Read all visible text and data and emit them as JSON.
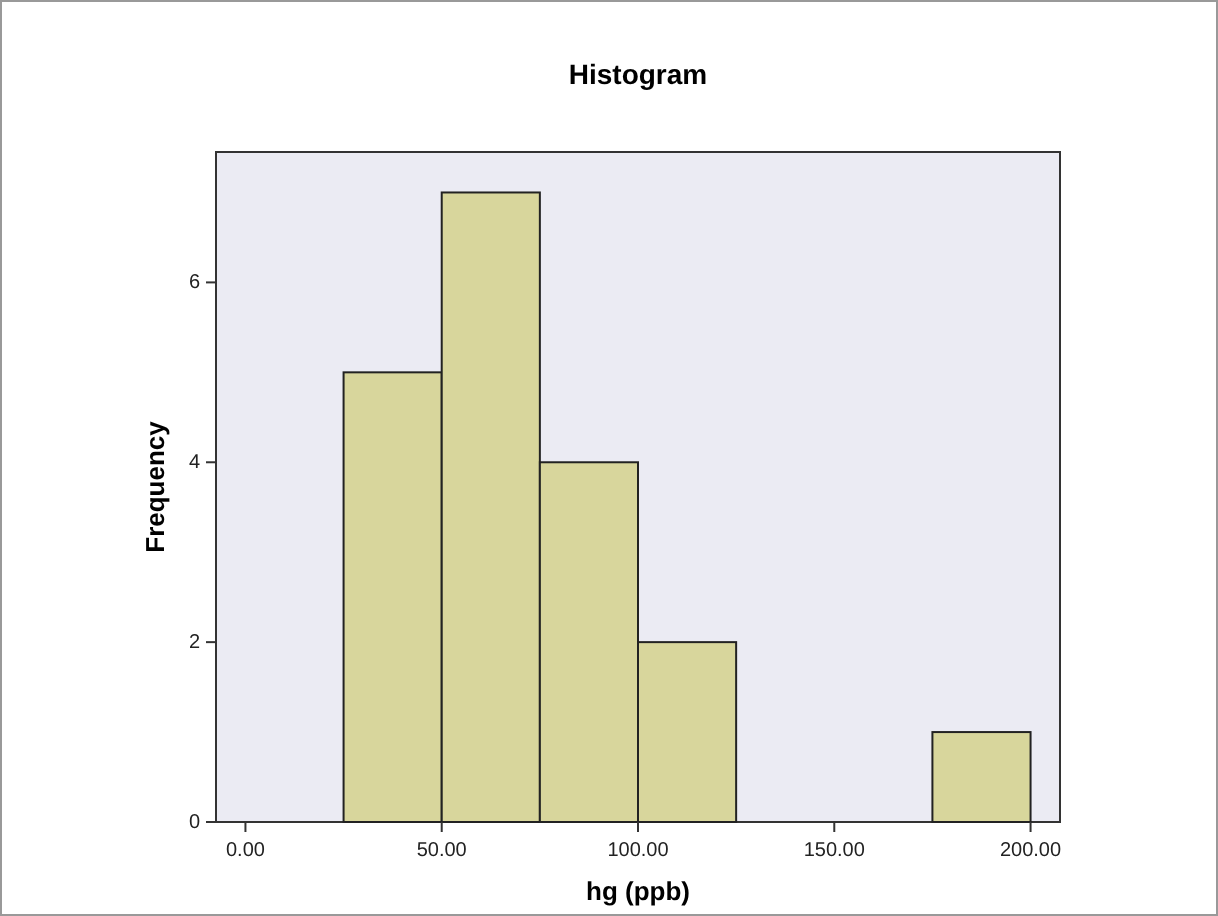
{
  "chart_data": {
    "type": "histogram",
    "title": "Histogram",
    "xlabel": "hg (ppb)",
    "ylabel": "Frequency",
    "bins": [
      25,
      50,
      75,
      100,
      125,
      150,
      175,
      200
    ],
    "values": [
      5,
      7,
      4,
      2,
      0,
      0,
      1
    ],
    "color": "#d8d69c",
    "xlim": [
      -7.5,
      207.5
    ],
    "ylim": [
      0,
      7.45
    ],
    "xticks": [
      {
        "value": 0,
        "label": "0.00"
      },
      {
        "value": 50,
        "label": "50.00"
      },
      {
        "value": 100,
        "label": "100.00"
      },
      {
        "value": 150,
        "label": "150.00"
      },
      {
        "value": 200,
        "label": "200.00"
      }
    ],
    "yticks": [
      0,
      2,
      4,
      6
    ],
    "grid": false
  }
}
